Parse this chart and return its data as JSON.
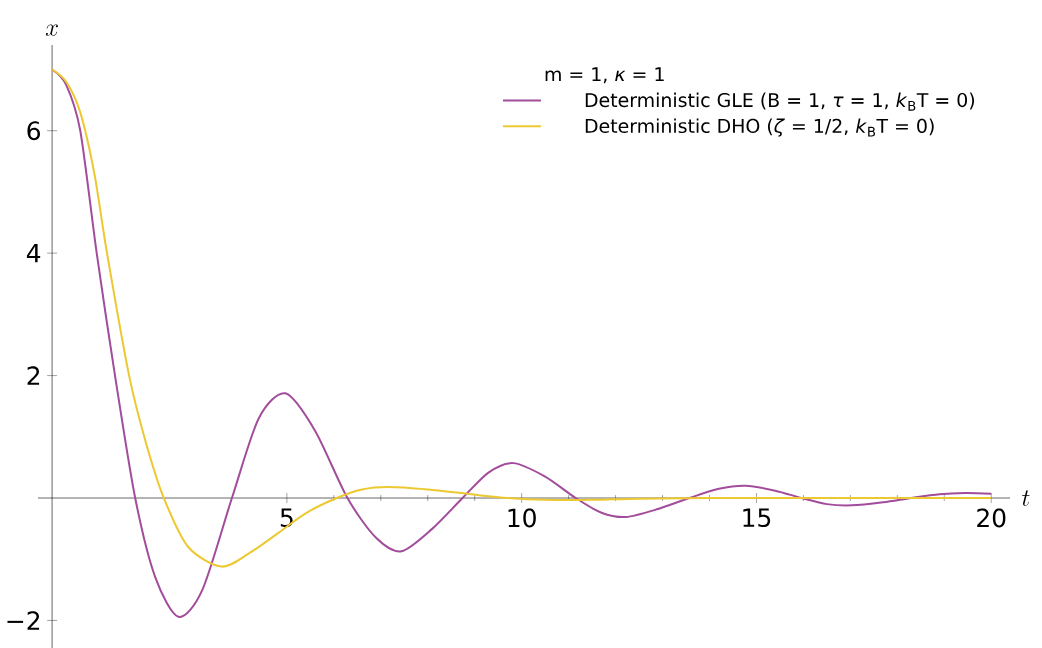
{
  "chart_data": {
    "type": "line",
    "xlabel": "t",
    "ylabel": "x",
    "legend_title": "m = 1, *κ* = 1",
    "legend": "top right",
    "xlim": [
      -0.3,
      20.4
    ],
    "ylim": [
      -2.45,
      7.4
    ],
    "xticks": [
      5,
      10,
      15,
      20
    ],
    "yticks": [
      {
        "value": -2,
        "label": "−2"
      },
      {
        "value": 2,
        "label": "2"
      },
      {
        "value": 4,
        "label": "4"
      },
      {
        "value": 6,
        "label": "6"
      }
    ],
    "series": [
      {
        "name": "Deterministic GLE (B = 1, *τ* = 1, *k*$_{B}$T = 0)",
        "color": "#a24c9c",
        "x": [
          0,
          0.3,
          0.6,
          0.95,
          1.34,
          1.77,
          2.2,
          2.69,
          3.2,
          3.83,
          4.4,
          4.97,
          5.6,
          6.29,
          6.9,
          7.44,
          8.1,
          8.74,
          9.3,
          9.82,
          10.5,
          11.15,
          11.7,
          12.22,
          12.9,
          13.57,
          14.2,
          14.77,
          15.4,
          15.96,
          16.5,
          17.03,
          17.7,
          18.3,
          18.9,
          19.44,
          20
        ],
        "values": [
          7,
          6.75,
          6.0,
          4.0,
          2.0,
          0,
          -1.3,
          -1.94,
          -1.5,
          0,
          1.3,
          1.71,
          1.1,
          0,
          -0.65,
          -0.87,
          -0.5,
          0,
          0.42,
          0.57,
          0.35,
          0,
          -0.24,
          -0.31,
          -0.18,
          0,
          0.15,
          0.2,
          0.12,
          0,
          -0.1,
          -0.12,
          -0.07,
          0,
          0.06,
          0.08,
          0.07
        ]
      },
      {
        "name": "Deterministic DHO (*ζ* = 1/2, *k*$_{B}$T = 0)",
        "color": "#ecc831",
        "x": [
          0,
          0.3,
          0.6,
          0.9,
          1.17,
          1.64,
          2.0,
          2.38,
          2.9,
          3.61,
          4.2,
          4.82,
          5.4,
          6.06,
          6.6,
          7.16,
          8.0,
          8.93,
          9.7,
          10.5,
          11.5,
          12.5,
          14,
          16,
          18,
          20
        ],
        "values": [
          7,
          6.8,
          6.3,
          5.3,
          4.0,
          2.0,
          0.9,
          0,
          -0.8,
          -1.12,
          -0.9,
          -0.57,
          -0.25,
          0,
          0.14,
          0.18,
          0.14,
          0.06,
          0,
          -0.03,
          -0.03,
          -0.01,
          0,
          0,
          0,
          0
        ]
      }
    ]
  }
}
